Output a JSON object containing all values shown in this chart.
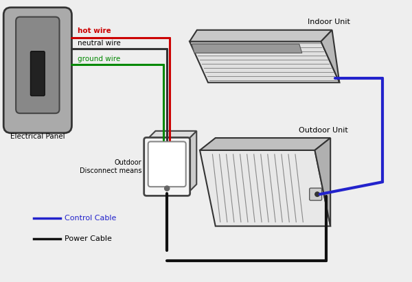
{
  "bg_color": "#eeeeee",
  "wire_colors": {
    "hot": "#cc0000",
    "neutral": "#333333",
    "ground": "#008800",
    "power": "#111111",
    "control": "#2222cc"
  },
  "wire_labels": {
    "hot": "hot wire",
    "neutral": "neutral wire",
    "ground": "ground wire"
  },
  "labels": {
    "panel": "Electrical Panel",
    "disconnect": "Outdoor\nDisconnect means",
    "indoor": "Indoor Unit",
    "outdoor": "Outdoor Unit",
    "control_cable": "Control Cable",
    "power_cable": "Power Cable"
  }
}
